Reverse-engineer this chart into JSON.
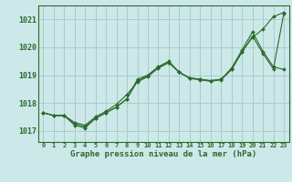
{
  "title": "Graphe pression niveau de la mer (hPa)",
  "background_color": "#cce8e8",
  "grid_color": "#aacccc",
  "line_color": "#2d6a2d",
  "x_labels": [
    "0",
    "1",
    "2",
    "3",
    "4",
    "5",
    "6",
    "7",
    "8",
    "9",
    "10",
    "11",
    "12",
    "13",
    "14",
    "15",
    "16",
    "17",
    "18",
    "19",
    "20",
    "21",
    "22",
    "23"
  ],
  "ylim": [
    1016.6,
    1021.5
  ],
  "yticks": [
    1017,
    1018,
    1019,
    1020,
    1021
  ],
  "series": [
    [
      1017.65,
      1017.55,
      1017.55,
      1017.2,
      1017.1,
      1017.45,
      1017.65,
      1017.85,
      1018.15,
      1018.85,
      1019.0,
      1019.3,
      1019.5,
      1019.1,
      1018.9,
      1018.85,
      1018.8,
      1018.85,
      1019.2,
      1019.85,
      1020.35,
      1020.65,
      1021.1,
      1021.25
    ],
    [
      1017.65,
      1017.55,
      1017.55,
      1017.3,
      1017.2,
      1017.5,
      1017.7,
      1017.95,
      1018.3,
      1018.75,
      1018.95,
      1019.25,
      1019.45,
      1019.1,
      1018.9,
      1018.85,
      1018.8,
      1018.85,
      1019.25,
      1019.9,
      1020.55,
      1019.85,
      1019.3,
      1019.2
    ],
    [
      1017.65,
      1017.55,
      1017.55,
      1017.25,
      1017.15,
      1017.45,
      1017.65,
      1017.85,
      1018.15,
      1018.78,
      1018.98,
      1019.28,
      1019.45,
      1019.1,
      1018.88,
      1018.83,
      1018.78,
      1018.83,
      1019.2,
      1019.82,
      1020.4,
      1019.78,
      1019.22,
      1021.22
    ]
  ]
}
